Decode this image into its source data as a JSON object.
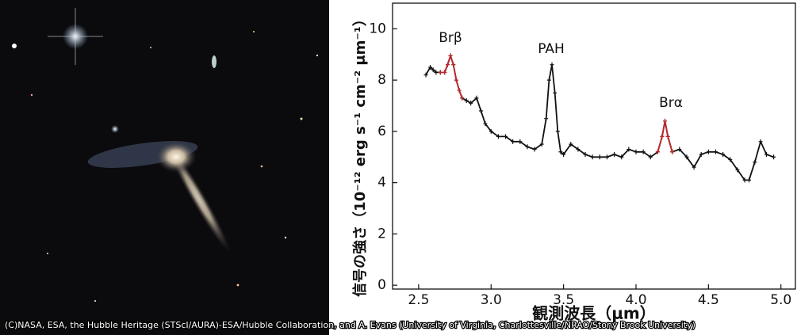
{
  "photo": {
    "credit": "(C)NASA, ESA, the Hubble Heritage (STScI/AURA)-ESA/Hubble Collaboration, and A. Evans (University of Virginia, Charlottesville/NRAO/Stony Brook University)"
  },
  "chart_data": {
    "type": "line",
    "y_label": "信号の強さ（10⁻¹² erg s⁻¹ cm⁻² μm⁻¹）",
    "x_label": "観測波長（μm）",
    "annotations": [
      "Brβ",
      "PAH",
      "Brα"
    ],
    "x": [
      2.55,
      2.58,
      2.6,
      2.62,
      2.65,
      2.68,
      2.7,
      2.72,
      2.74,
      2.76,
      2.78,
      2.8,
      2.83,
      2.86,
      2.9,
      2.93,
      2.96,
      3.0,
      3.05,
      3.1,
      3.15,
      3.2,
      3.25,
      3.3,
      3.35,
      3.38,
      3.4,
      3.42,
      3.44,
      3.46,
      3.48,
      3.5,
      3.55,
      3.6,
      3.65,
      3.7,
      3.75,
      3.8,
      3.85,
      3.9,
      3.95,
      4.0,
      4.05,
      4.1,
      4.15,
      4.18,
      4.2,
      4.22,
      4.25,
      4.3,
      4.35,
      4.4,
      4.45,
      4.5,
      4.55,
      4.6,
      4.65,
      4.7,
      4.75,
      4.78,
      4.82,
      4.86,
      4.9,
      4.95
    ],
    "series": [
      {
        "color": "#111111",
        "values": [
          8.2,
          8.5,
          8.4,
          8.3,
          8.3,
          8.3,
          8.6,
          8.95,
          8.6,
          8.0,
          7.6,
          7.3,
          7.2,
          7.1,
          7.3,
          6.8,
          6.3,
          6.0,
          5.8,
          5.8,
          5.6,
          5.6,
          5.4,
          5.3,
          5.5,
          6.5,
          8.0,
          8.6,
          7.5,
          6.0,
          5.2,
          5.1,
          5.5,
          5.3,
          5.1,
          5.0,
          5.0,
          5.0,
          5.1,
          5.0,
          5.3,
          5.2,
          5.2,
          5.0,
          5.2,
          5.8,
          6.4,
          5.8,
          5.2,
          5.3,
          5.0,
          4.6,
          5.1,
          5.2,
          5.2,
          5.1,
          4.9,
          4.5,
          4.1,
          4.1,
          4.8,
          5.6,
          5.1,
          5.0
        ]
      },
      {
        "color": "#c0272d",
        "values": [
          null,
          null,
          null,
          null,
          8.3,
          8.3,
          8.6,
          8.95,
          8.6,
          8.0,
          7.6,
          7.3,
          null,
          null,
          null,
          null,
          null,
          null,
          null,
          null,
          null,
          null,
          null,
          null,
          null,
          null,
          null,
          null,
          null,
          null,
          null,
          null,
          null,
          null,
          null,
          null,
          null,
          null,
          null,
          null,
          null,
          null,
          null,
          null,
          5.2,
          5.8,
          6.4,
          5.8,
          5.2,
          null,
          null,
          null,
          null,
          null,
          null,
          null,
          null,
          null,
          null,
          null,
          null,
          null,
          null,
          null
        ]
      }
    ],
    "xlim": [
      2.32,
      5.1
    ],
    "ylim": [
      -0.15,
      11
    ],
    "xticks": [
      2.5,
      {
        "value": 3,
        "label": "3.0"
      },
      3.5,
      {
        "value": 4,
        "label": "4.0"
      },
      4.5,
      {
        "value": 5,
        "label": "5.0"
      }
    ],
    "yticks": [
      0,
      2,
      4,
      6,
      8,
      10
    ]
  }
}
